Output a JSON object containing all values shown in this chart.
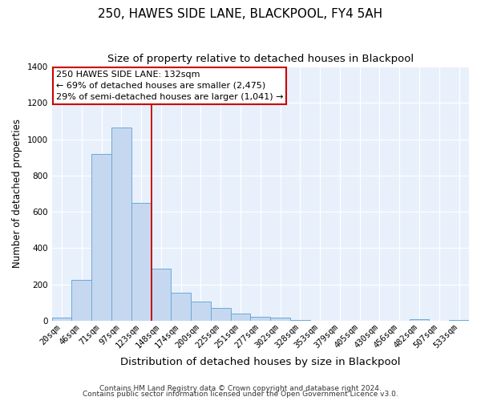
{
  "title": "250, HAWES SIDE LANE, BLACKPOOL, FY4 5AH",
  "subtitle": "Size of property relative to detached houses in Blackpool",
  "xlabel": "Distribution of detached houses by size in Blackpool",
  "ylabel": "Number of detached properties",
  "bar_labels": [
    "20sqm",
    "46sqm",
    "71sqm",
    "97sqm",
    "123sqm",
    "148sqm",
    "174sqm",
    "200sqm",
    "225sqm",
    "251sqm",
    "277sqm",
    "302sqm",
    "328sqm",
    "353sqm",
    "379sqm",
    "405sqm",
    "430sqm",
    "456sqm",
    "482sqm",
    "507sqm",
    "533sqm"
  ],
  "bar_values": [
    15,
    225,
    920,
    1065,
    650,
    285,
    155,
    105,
    70,
    38,
    23,
    15,
    5,
    0,
    0,
    0,
    0,
    0,
    10,
    0,
    5
  ],
  "bar_color": "#c5d8f0",
  "bar_edgecolor": "#6aaad4",
  "background_color": "#ffffff",
  "plot_bg_color": "#e8f0fc",
  "ylim": [
    0,
    1400
  ],
  "vline_x": 4.5,
  "vline_color": "#cc0000",
  "annotation_text": "250 HAWES SIDE LANE: 132sqm\n← 69% of detached houses are smaller (2,475)\n29% of semi-detached houses are larger (1,041) →",
  "annotation_box_facecolor": "#ffffff",
  "annotation_box_edgecolor": "#cc0000",
  "footnote1": "Contains HM Land Registry data © Crown copyright and database right 2024.",
  "footnote2": "Contains public sector information licensed under the Open Government Licence v3.0.",
  "title_fontsize": 11,
  "subtitle_fontsize": 9.5,
  "xlabel_fontsize": 9.5,
  "ylabel_fontsize": 8.5,
  "tick_fontsize": 7.5,
  "annotation_fontsize": 8,
  "footnote_fontsize": 6.5
}
